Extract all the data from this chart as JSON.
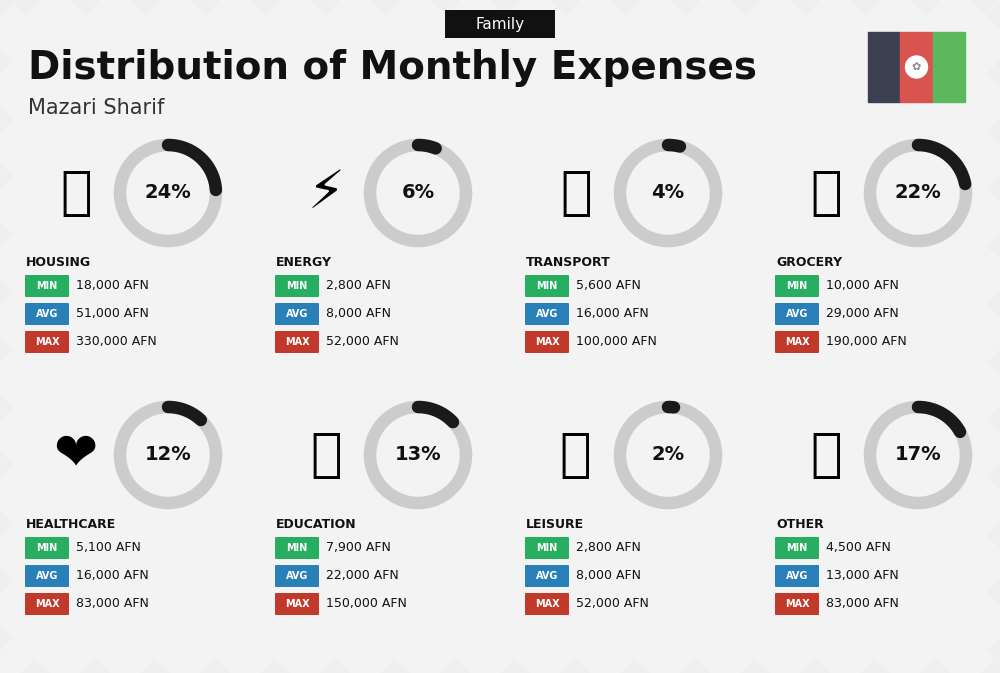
{
  "title": "Distribution of Monthly Expenses",
  "subtitle": "Mazari Sharif",
  "category_label": "Family",
  "bg_color": "#efefef",
  "categories": [
    {
      "name": "HOUSING",
      "pct": 24,
      "min": "18,000 AFN",
      "avg": "51,000 AFN",
      "max": "330,000 AFN",
      "row": 0,
      "col": 0
    },
    {
      "name": "ENERGY",
      "pct": 6,
      "min": "2,800 AFN",
      "avg": "8,000 AFN",
      "max": "52,000 AFN",
      "row": 0,
      "col": 1
    },
    {
      "name": "TRANSPORT",
      "pct": 4,
      "min": "5,600 AFN",
      "avg": "16,000 AFN",
      "max": "100,000 AFN",
      "row": 0,
      "col": 2
    },
    {
      "name": "GROCERY",
      "pct": 22,
      "min": "10,000 AFN",
      "avg": "29,000 AFN",
      "max": "190,000 AFN",
      "row": 0,
      "col": 3
    },
    {
      "name": "HEALTHCARE",
      "pct": 12,
      "min": "5,100 AFN",
      "avg": "16,000 AFN",
      "max": "83,000 AFN",
      "row": 1,
      "col": 0
    },
    {
      "name": "EDUCATION",
      "pct": 13,
      "min": "7,900 AFN",
      "avg": "22,000 AFN",
      "max": "150,000 AFN",
      "row": 1,
      "col": 1
    },
    {
      "name": "LEISURE",
      "pct": 2,
      "min": "2,800 AFN",
      "avg": "8,000 AFN",
      "max": "52,000 AFN",
      "row": 1,
      "col": 2
    },
    {
      "name": "OTHER",
      "pct": 17,
      "min": "4,500 AFN",
      "avg": "13,000 AFN",
      "max": "83,000 AFN",
      "row": 1,
      "col": 3
    }
  ],
  "min_color": "#27ae60",
  "avg_color": "#2980b9",
  "max_color": "#c0392b",
  "arc_bg_color": "#cccccc",
  "arc_fg_color": "#1a1a1a",
  "tag_bg": "#111111",
  "flag_colors": [
    "#3d4051",
    "#d9534f",
    "#5cb85c"
  ],
  "stripe_color": "#ffffff",
  "stripe_alpha": 0.3,
  "title_fontsize": 28,
  "subtitle_fontsize": 15,
  "cat_name_fontsize": 9,
  "badge_label_fontsize": 7,
  "badge_value_fontsize": 9,
  "pct_fontsize": 14
}
